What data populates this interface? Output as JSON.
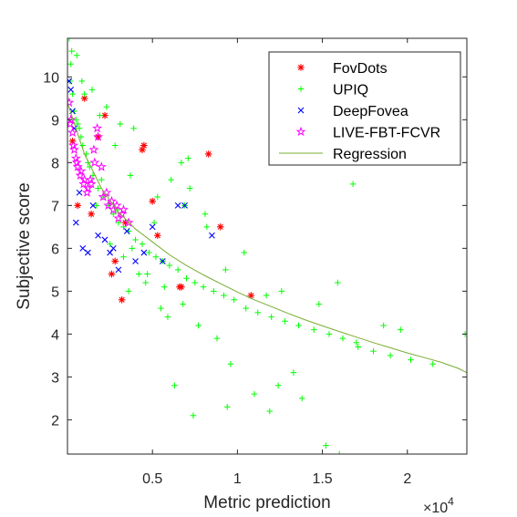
{
  "chart_data": {
    "type": "scatter",
    "title": "",
    "xlabel": "Metric prediction",
    "ylabel": "Subjective score",
    "x_exponent_label": "×10",
    "x_exponent_power": "4",
    "xlim": [
      0,
      23500
    ],
    "ylim": [
      1.2,
      10.9
    ],
    "x_ticks": [
      5000,
      10000,
      15000,
      20000
    ],
    "x_tick_labels": [
      "0.5",
      "1",
      "1.5",
      "2"
    ],
    "y_ticks": [
      2,
      3,
      4,
      5,
      6,
      7,
      8,
      9,
      10
    ],
    "y_tick_labels": [
      "2",
      "3",
      "4",
      "5",
      "6",
      "7",
      "8",
      "9",
      "10"
    ],
    "grid": false,
    "legend_position": "top-right",
    "colors": {
      "FovDots": "#ff0000",
      "UPIQ": "#00ff00",
      "DeepFovea": "#0000ff",
      "LIVE-FBT-FCVR": "#ff00ff",
      "Regression": "#77ac30"
    },
    "series": [
      {
        "name": "FovDots",
        "marker": "asterisk",
        "x": [
          300,
          600,
          1000,
          1400,
          1800,
          2200,
          2600,
          2800,
          3200,
          3400,
          4400,
          4500,
          5000,
          5300,
          6600,
          6700,
          8300,
          9000,
          10800
        ],
        "y": [
          8.5,
          7.0,
          9.5,
          6.8,
          8.6,
          9.1,
          5.4,
          5.7,
          4.8,
          6.6,
          8.3,
          8.4,
          7.1,
          6.3,
          5.1,
          5.1,
          8.2,
          6.5,
          4.9
        ]
      },
      {
        "name": "UPIQ",
        "marker": "plus",
        "x": [
          100,
          200,
          300,
          500,
          700,
          900,
          1200,
          1500,
          1800,
          2100,
          2400,
          2700,
          3000,
          3300,
          3600,
          4000,
          4400,
          4800,
          5200,
          5600,
          6000,
          6500,
          7000,
          7500,
          8000,
          8600,
          9200,
          9800,
          10500,
          11200,
          12000,
          12800,
          13600,
          14500,
          15400,
          16200,
          17000,
          18000,
          19000,
          20200,
          21500,
          23400,
          150,
          400,
          800,
          1300,
          2000,
          2900,
          3800,
          4700,
          5700,
          6800,
          7700,
          8800,
          9600,
          11000,
          12400,
          13300,
          14800,
          15900,
          6700,
          7200,
          8200,
          10400,
          11700,
          12600,
          6300,
          7400,
          9400,
          11900,
          13800,
          15200,
          16000,
          17100,
          18600,
          19600,
          3600,
          5100,
          6100,
          7100,
          4200,
          5500,
          600,
          1100,
          1700,
          2500,
          3300,
          4600,
          5900,
          1000,
          1900,
          2800,
          3700,
          250,
          550,
          850,
          1450,
          2300,
          3100,
          3900,
          5300,
          6900,
          8100,
          9300,
          16800
        ],
        "y": [
          10.9,
          10.3,
          9.6,
          9.0,
          8.8,
          8.4,
          8.0,
          7.7,
          7.4,
          7.2,
          7.0,
          6.8,
          6.6,
          6.5,
          6.4,
          6.2,
          6.1,
          5.9,
          5.8,
          5.7,
          5.6,
          5.5,
          5.3,
          5.2,
          5.1,
          5.0,
          4.9,
          4.8,
          4.6,
          4.5,
          4.4,
          4.3,
          4.2,
          4.1,
          4.0,
          3.9,
          3.8,
          3.6,
          3.5,
          3.4,
          3.3,
          4.0,
          9.9,
          9.2,
          8.6,
          7.9,
          7.6,
          6.9,
          6.0,
          5.4,
          5.1,
          4.7,
          4.2,
          3.9,
          3.3,
          2.6,
          2.8,
          3.1,
          4.7,
          5.2,
          8.0,
          7.4,
          6.5,
          5.9,
          4.9,
          5.0,
          2.8,
          2.1,
          2.3,
          2.2,
          2.5,
          1.4,
          1.2,
          3.7,
          4.2,
          4.1,
          5.0,
          6.6,
          7.6,
          8.1,
          5.4,
          4.6,
          8.9,
          8.2,
          7.0,
          6.1,
          5.8,
          5.2,
          4.4,
          9.6,
          9.1,
          8.4,
          7.7,
          10.6,
          10.5,
          9.9,
          9.7,
          9.3,
          8.9,
          8.8,
          7.2,
          7.0,
          6.8,
          5.5,
          7.5
        ]
      },
      {
        "name": "DeepFovea",
        "marker": "x",
        "x": [
          100,
          200,
          300,
          400,
          500,
          700,
          900,
          1200,
          1500,
          1800,
          2200,
          2500,
          2700,
          3000,
          3500,
          4000,
          4500,
          5000,
          5600,
          6500,
          6900,
          8500
        ],
        "y": [
          9.9,
          9.7,
          9.2,
          8.8,
          6.6,
          7.3,
          6.0,
          5.9,
          7.0,
          6.3,
          6.2,
          5.9,
          6.0,
          5.5,
          6.4,
          5.7,
          5.9,
          6.5,
          5.7,
          7.0,
          7.0,
          6.3
        ]
      },
      {
        "name": "LIVE-FBT-FCVR",
        "marker": "pentagram",
        "x": [
          100,
          200,
          300,
          400,
          500,
          600,
          800,
          1000,
          1200,
          1400,
          1600,
          1800,
          2100,
          2400,
          2700,
          3000,
          3300,
          150,
          350,
          550,
          750,
          950,
          1150,
          1350,
          1550,
          1750,
          2000,
          2300,
          2600,
          2900,
          3200,
          3600
        ],
        "y": [
          9.4,
          9.0,
          8.7,
          8.3,
          8.1,
          7.9,
          7.8,
          7.6,
          7.4,
          7.5,
          8.0,
          8.6,
          7.2,
          7.0,
          6.9,
          6.7,
          6.9,
          8.9,
          8.4,
          8.0,
          7.7,
          7.5,
          7.3,
          7.6,
          8.3,
          8.8,
          7.9,
          7.3,
          7.1,
          7.0,
          6.8,
          6.6
        ]
      },
      {
        "name": "Regression",
        "marker": "line",
        "x": [
          0,
          1000,
          2000,
          3000,
          4000,
          5000,
          6000,
          7000,
          8000,
          9000,
          10000,
          11000,
          12000,
          13000,
          14000,
          15000,
          16000,
          17000,
          18000,
          19000,
          20000,
          21000,
          22000,
          23000,
          23500
        ],
        "y": [
          9.4,
          8.2,
          7.4,
          6.85,
          6.45,
          6.15,
          5.85,
          5.6,
          5.38,
          5.18,
          4.98,
          4.8,
          4.64,
          4.48,
          4.33,
          4.19,
          4.06,
          3.93,
          3.8,
          3.68,
          3.56,
          3.45,
          3.34,
          3.2,
          3.1
        ]
      }
    ]
  }
}
